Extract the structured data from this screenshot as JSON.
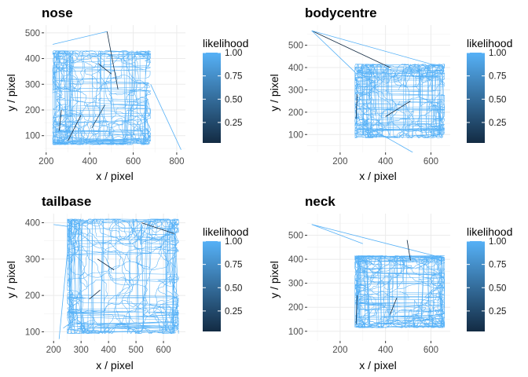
{
  "chart_data": [
    {
      "type": "line",
      "title": "nose",
      "xlabel": "x / pixel",
      "ylabel": "y / pixel",
      "xlim": [
        190,
        840
      ],
      "ylim": [
        35,
        530
      ],
      "xticks": [
        200,
        400,
        600,
        800
      ],
      "yticks": [
        100,
        200,
        300,
        400,
        500
      ],
      "arena": {
        "x": [
          230,
          680
        ],
        "y": [
          65,
          430
        ]
      },
      "excursions": [
        {
          "x": [
            680,
            820
          ],
          "y": [
            300,
            45
          ],
          "color": "#56b1f7"
        },
        {
          "x": [
            230,
            480
          ],
          "y": [
            455,
            505
          ],
          "color": "#56b1f7"
        },
        {
          "x": [
            480,
            530
          ],
          "y": [
            505,
            280
          ],
          "color": "#132b43"
        },
        {
          "x": [
            300,
            360
          ],
          "y": [
            80,
            180
          ],
          "color": "#132b43"
        },
        {
          "x": [
            410,
            470
          ],
          "y": [
            130,
            220
          ],
          "color": "#1f4766"
        },
        {
          "x": [
            260,
            270
          ],
          "y": [
            120,
            200
          ],
          "color": "#132b43"
        },
        {
          "x": [
            440,
            500
          ],
          "y": [
            380,
            340
          ],
          "color": "#132b43"
        }
      ],
      "legend": {
        "title": "likelihood",
        "ticks": [
          0.25,
          0.5,
          0.75,
          1.0
        ],
        "labels": [
          "0.25",
          "0.50",
          "0.75",
          "1.00"
        ],
        "range": [
          0.03,
          1.0
        ],
        "low_color": "#132b43",
        "high_color": "#56b1f7"
      }
    },
    {
      "type": "line",
      "title": "bodycentre",
      "xlabel": "x / pixel",
      "ylabel": "y / pixel",
      "xlim": [
        55,
        685
      ],
      "ylim": [
        20,
        590
      ],
      "xticks": [
        200,
        400,
        600
      ],
      "yticks": [
        100,
        200,
        300,
        400,
        500
      ],
      "arena": {
        "x": [
          265,
          660
        ],
        "y": [
          85,
          415
        ]
      },
      "excursions": [
        {
          "x": [
            75,
            420
          ],
          "y": [
            565,
            400
          ],
          "color": "#132b43"
        },
        {
          "x": [
            75,
            655
          ],
          "y": [
            565,
            400
          ],
          "color": "#56b1f7"
        },
        {
          "x": [
            75,
            265
          ],
          "y": [
            565,
            380
          ],
          "color": "#56b1f7"
        },
        {
          "x": [
            330,
            520
          ],
          "y": [
            130,
            20
          ],
          "color": "#56b1f7"
        },
        {
          "x": [
            400,
            510
          ],
          "y": [
            180,
            250
          ],
          "color": "#132b43"
        },
        {
          "x": [
            270,
            275
          ],
          "y": [
            170,
            280
          ],
          "color": "#132b43"
        }
      ],
      "legend": {
        "title": "likelihood",
        "ticks": [
          0.25,
          0.5,
          0.75,
          1.0
        ],
        "labels": [
          "0.25",
          "0.50",
          "0.75",
          "1.00"
        ],
        "range": [
          0.03,
          1.0
        ],
        "low_color": "#132b43",
        "high_color": "#56b1f7"
      }
    },
    {
      "type": "line",
      "title": "tailbase",
      "xlabel": "x / pixel",
      "ylabel": "y / pixel",
      "xlim": [
        165,
        680
      ],
      "ylim": [
        75,
        425
      ],
      "xticks": [
        200,
        300,
        400,
        500,
        600
      ],
      "yticks": [
        100,
        200,
        300,
        400
      ],
      "arena": {
        "x": [
          250,
          655
        ],
        "y": [
          95,
          410
        ]
      },
      "excursions": [
        {
          "x": [
            200,
            250
          ],
          "y": [
            395,
            390
          ],
          "color": "#56b1f7"
        },
        {
          "x": [
            220,
            260
          ],
          "y": [
            80,
            395
          ],
          "color": "#56b1f7"
        },
        {
          "x": [
            235,
            290
          ],
          "y": [
            110,
            140
          ],
          "color": "#56b1f7"
        },
        {
          "x": [
            520,
            640
          ],
          "y": [
            400,
            370
          ],
          "color": "#132b43"
        },
        {
          "x": [
            360,
            420
          ],
          "y": [
            300,
            270
          ],
          "color": "#132b43"
        },
        {
          "x": [
            330,
            370
          ],
          "y": [
            190,
            215
          ],
          "color": "#132b43"
        }
      ],
      "legend": {
        "title": "likelihood",
        "ticks": [
          0.25,
          0.5,
          0.75,
          1.0
        ],
        "labels": [
          "0.25",
          "0.50",
          "0.75",
          "1.00"
        ],
        "range": [
          0.03,
          1.0
        ],
        "low_color": "#132b43",
        "high_color": "#56b1f7"
      }
    },
    {
      "type": "line",
      "title": "neck",
      "xlabel": "x / pixel",
      "ylabel": "y / pixel",
      "xlim": [
        55,
        685
      ],
      "ylim": [
        60,
        590
      ],
      "xticks": [
        200,
        400,
        600
      ],
      "yticks": [
        100,
        200,
        300,
        400,
        500
      ],
      "arena": {
        "x": [
          265,
          660
        ],
        "y": [
          115,
          415
        ]
      },
      "excursions": [
        {
          "x": [
            75,
            655
          ],
          "y": [
            545,
            405
          ],
          "color": "#56b1f7"
        },
        {
          "x": [
            75,
            300
          ],
          "y": [
            545,
            465
          ],
          "color": "#56b1f7"
        },
        {
          "x": [
            495,
            510
          ],
          "y": [
            480,
            395
          ],
          "color": "#132b43"
        },
        {
          "x": [
            420,
            450
          ],
          "y": [
            170,
            240
          ],
          "color": "#132b43"
        },
        {
          "x": [
            270,
            275
          ],
          "y": [
            130,
            250
          ],
          "color": "#132b43"
        }
      ],
      "legend": {
        "title": "likelihood",
        "ticks": [
          0.25,
          0.5,
          0.75,
          1.0
        ],
        "labels": [
          "0.25",
          "0.50",
          "0.75",
          "1.00"
        ],
        "range": [
          0.03,
          1.0
        ],
        "low_color": "#132b43",
        "high_color": "#56b1f7"
      }
    }
  ]
}
